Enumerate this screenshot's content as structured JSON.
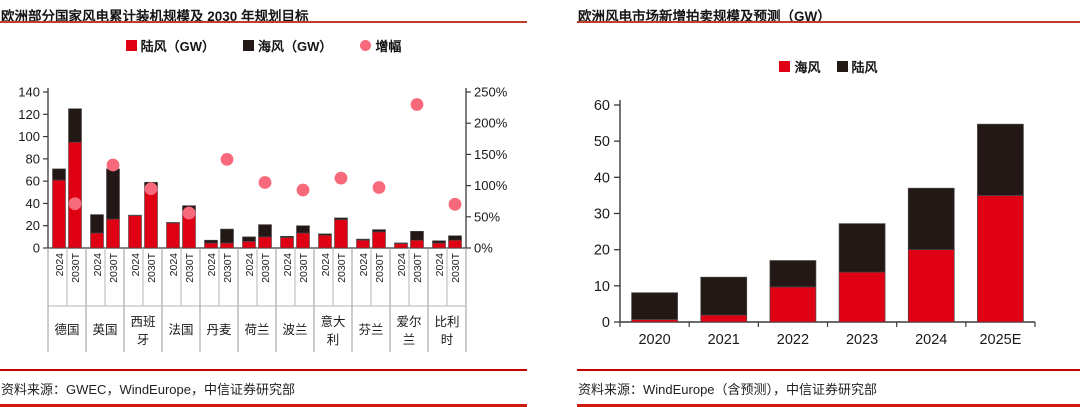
{
  "colors": {
    "onshore_red": "#e00013",
    "offshore_black": "#231815",
    "growth_pink": "#f8697c",
    "title_rule_red": "#c23b2d",
    "source_rule_red": "#c90000",
    "axis_line": "#3a3a3a",
    "grid_divider": "#999999"
  },
  "left_panel": {
    "title": "欧洲部分国家风电累计装机规模及 2030 年规划目标",
    "legend": [
      {
        "label": "陆风（GW）",
        "marker": "square",
        "color": "#e00013"
      },
      {
        "label": "海风（GW）",
        "marker": "square",
        "color": "#231815"
      },
      {
        "label": "增幅",
        "marker": "circle",
        "color": "#f8697c"
      }
    ],
    "source": "资料来源：GWEC，WindEurope，中信证券研究部"
  },
  "right_panel": {
    "title": "欧洲风电市场新增拍卖规模及预测（GW）",
    "legend": [
      {
        "label": "海风",
        "marker": "square",
        "color": "#e00013"
      },
      {
        "label": "陆风",
        "marker": "square",
        "color": "#231815"
      }
    ],
    "source": "资料来源：WindEurope（含预测），中信证券研究部"
  },
  "chart_data": [
    {
      "id": "left",
      "type": "bar",
      "stacked": true,
      "title": "欧洲部分国家风电累计装机规模及 2030 年规划目标",
      "categories": [
        "德国",
        "英国",
        "西班牙",
        "法国",
        "丹麦",
        "荷兰",
        "波兰",
        "意大利",
        "芬兰",
        "爱尔兰",
        "比利时"
      ],
      "group_labels": [
        "2024",
        "2030T"
      ],
      "series": [
        {
          "name": "陆风（GW）",
          "color": "#e00013",
          "axis": "left",
          "values_2024": [
            61,
            13.5,
            29,
            22.5,
            4.5,
            6,
            9.5,
            11.5,
            7,
            4,
            4.5
          ],
          "values_2030T": [
            95,
            26,
            54,
            34,
            4.5,
            10,
            13.5,
            25.5,
            14.5,
            7,
            7
          ]
        },
        {
          "name": "海风（GW）",
          "color": "#231815",
          "axis": "left",
          "values_2024": [
            10,
            16.5,
            0.5,
            0.5,
            2.5,
            4,
            1,
            1.2,
            1,
            0.6,
            2
          ],
          "values_2030T": [
            30,
            45,
            5,
            4,
            12.5,
            11,
            6.5,
            1.5,
            2,
            8,
            4
          ]
        },
        {
          "name": "增幅",
          "type": "scatter",
          "color": "#f8697c",
          "axis": "right",
          "values_pct": [
            71,
            133,
            95,
            56,
            142,
            105,
            93,
            112,
            97,
            230,
            70
          ]
        }
      ],
      "y_left": {
        "min": 0,
        "max": 140,
        "step": 20,
        "ticks": [
          "0",
          "20",
          "40",
          "60",
          "80",
          "100",
          "120",
          "140"
        ]
      },
      "y_right": {
        "min": 0,
        "max": 250,
        "step": 50,
        "suffix": "%",
        "ticks": [
          "0%",
          "50%",
          "100%",
          "150%",
          "200%",
          "250%"
        ]
      },
      "legend_position": "top",
      "grid": false
    },
    {
      "id": "right",
      "type": "bar",
      "stacked": true,
      "title": "欧洲风电市场新增拍卖规模及预测（GW）",
      "categories": [
        "2020",
        "2021",
        "2022",
        "2023",
        "2024",
        "2025E"
      ],
      "series": [
        {
          "name": "海风",
          "color": "#e00013",
          "values": [
            0.7,
            1.9,
            9.7,
            13.8,
            20,
            35
          ]
        },
        {
          "name": "陆风",
          "color": "#231815",
          "values": [
            7.4,
            10.5,
            7.3,
            13.4,
            17,
            19.7
          ]
        }
      ],
      "y": {
        "min": 0,
        "max": 60,
        "step": 10,
        "ticks": [
          "0",
          "10",
          "20",
          "30",
          "40",
          "50",
          "60"
        ]
      },
      "legend_position": "top",
      "grid": false
    }
  ]
}
